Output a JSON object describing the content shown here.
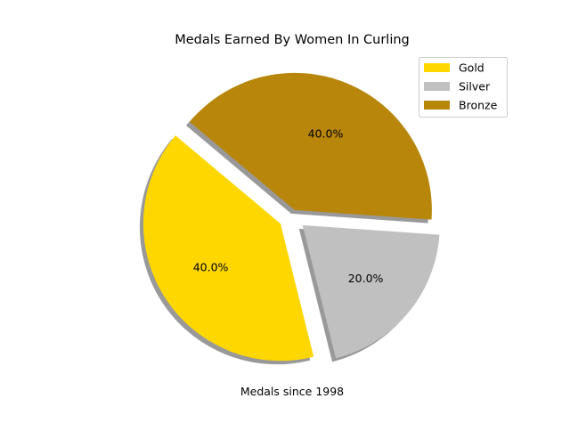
{
  "chart_data": {
    "type": "pie",
    "title": "Medals Earned By Women In Curling",
    "xlabel": "Medals since 1998",
    "legend_position": "top-right",
    "shadow": true,
    "start_angle_deg": 140,
    "slices": [
      {
        "label": "Gold",
        "value": 40.0,
        "pct_label": "40.0%",
        "color": "#FFD700",
        "explode": 0.1
      },
      {
        "label": "Silver",
        "value": 20.0,
        "pct_label": "20.0%",
        "color": "#C0C0C0",
        "explode": 0.1
      },
      {
        "label": "Bronze",
        "value": 40.0,
        "pct_label": "40.0%",
        "color": "#B8860B",
        "explode": 0.05
      }
    ]
  }
}
